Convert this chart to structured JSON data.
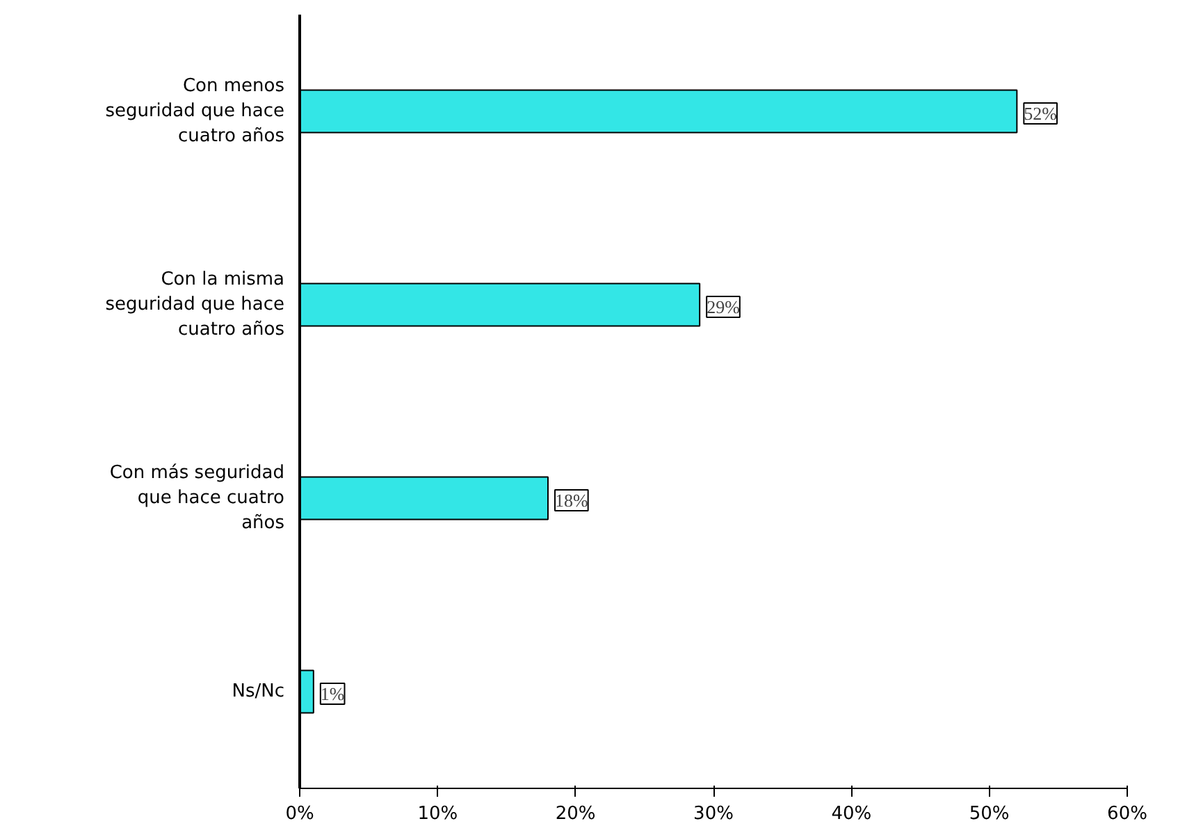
{
  "chart_data": {
    "type": "bar",
    "orientation": "horizontal",
    "categories": [
      "Con menos seguridad que hace cuatro años",
      "Con la misma seguridad que hace cuatro años",
      "Con más seguridad que hace cuatro años",
      "Ns/Nc"
    ],
    "values": [
      52,
      29,
      18,
      1
    ],
    "value_labels": [
      "52%",
      "29%",
      "18%",
      "1%"
    ],
    "color": "#33e6e6",
    "xlim": [
      0,
      60
    ],
    "xticks": [
      {
        "value": 0,
        "label": "0%"
      },
      {
        "value": 10,
        "label": "10%"
      },
      {
        "value": 20,
        "label": "20%"
      },
      {
        "value": 30,
        "label": "30%"
      },
      {
        "value": 40,
        "label": "40%"
      },
      {
        "value": 50,
        "label": "50%"
      },
      {
        "value": 60,
        "label": "60%"
      }
    ],
    "grid": false
  }
}
